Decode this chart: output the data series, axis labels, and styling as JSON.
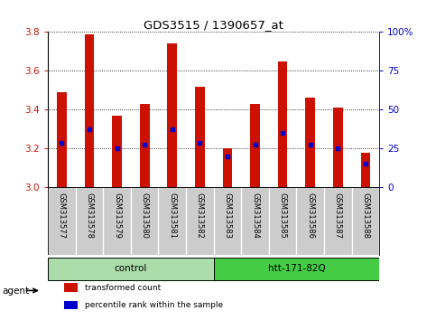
{
  "title": "GDS3515 / 1390657_at",
  "samples": [
    "GSM313577",
    "GSM313578",
    "GSM313579",
    "GSM313580",
    "GSM313581",
    "GSM313582",
    "GSM313583",
    "GSM313584",
    "GSM313585",
    "GSM313586",
    "GSM313587",
    "GSM313588"
  ],
  "transformed_counts": [
    3.49,
    3.79,
    3.37,
    3.43,
    3.74,
    3.52,
    3.2,
    3.43,
    3.65,
    3.46,
    3.41,
    3.18
  ],
  "percentile_ranks": [
    3.23,
    3.3,
    3.2,
    3.22,
    3.3,
    3.23,
    3.16,
    3.22,
    3.28,
    3.22,
    3.2,
    3.12
  ],
  "ylim_left": [
    3.0,
    3.8
  ],
  "ylim_right": [
    0,
    100
  ],
  "yticks_left": [
    3.0,
    3.2,
    3.4,
    3.6,
    3.8
  ],
  "yticks_right": [
    0,
    25,
    50,
    75,
    100
  ],
  "groups": [
    {
      "label": "control",
      "start": 0,
      "end": 6,
      "color": "#aaddaa"
    },
    {
      "label": "htt-171-82Q",
      "start": 6,
      "end": 12,
      "color": "#44cc44"
    }
  ],
  "bar_color": "#cc1100",
  "percentile_color": "#0000cc",
  "cell_bg": "#cccccc",
  "plot_bg": "#ffffff",
  "grid_color": "#000000",
  "left_tick_color": "#cc1100",
  "right_tick_color": "#0000cc",
  "legend_items": [
    {
      "label": "transformed count",
      "color": "#cc1100"
    },
    {
      "label": "percentile rank within the sample",
      "color": "#0000cc"
    }
  ],
  "agent_label": "agent",
  "bar_width": 0.35,
  "figsize": [
    4.83,
    3.54
  ],
  "dpi": 100
}
